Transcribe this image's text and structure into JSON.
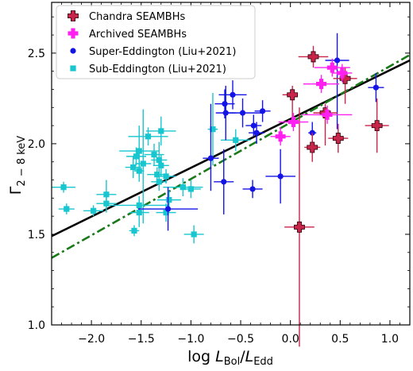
{
  "chart_data": {
    "type": "scatter",
    "xlabel_parts": {
      "prefix": "log ",
      "L1": "L",
      "sub1": "Bol",
      "slash": "/",
      "L2": "L",
      "sub2": "Edd"
    },
    "ylabel_parts": {
      "main": "Γ",
      "sub": "2 − 8 keV"
    },
    "xlim": [
      -2.4,
      1.2
    ],
    "ylim": [
      1.0,
      2.78
    ],
    "x_ticks": [
      -2.0,
      -1.5,
      -1.0,
      -0.5,
      0.0,
      0.5,
      1.0
    ],
    "x_tick_labels": [
      "−2.0",
      "−1.5",
      "−1.0",
      "−0.5",
      "0.0",
      "0.5",
      "1.0"
    ],
    "y_ticks": [
      1.0,
      1.5,
      2.0,
      2.5
    ],
    "y_tick_labels": [
      "1.0",
      "1.5",
      "2.0",
      "2.5"
    ],
    "legend_position": "top-left",
    "series": [
      {
        "name": "Chandra SEAMBHs",
        "marker": "plus",
        "color": "#c8254a",
        "points": [
          {
            "x": 0.23,
            "y": 2.48,
            "xerr": [
              0.15,
              0.15
            ],
            "yerr": [
              0.06,
              0.06
            ]
          },
          {
            "x": 0.55,
            "y": 2.36,
            "xerr": [
              0.12,
              0.12
            ],
            "yerr": [
              0.14,
              0.06
            ]
          },
          {
            "x": 0.02,
            "y": 2.27,
            "xerr": [
              0.1,
              0.05
            ],
            "yerr": [
              0.15,
              0.05
            ]
          },
          {
            "x": 0.35,
            "y": 2.17,
            "xerr": [
              0.12,
              0.12
            ],
            "yerr": [
              0.18,
              0.05
            ]
          },
          {
            "x": 0.87,
            "y": 2.1,
            "xerr": [
              0.12,
              0.12
            ],
            "yerr": [
              0.15,
              0.15
            ]
          },
          {
            "x": 0.48,
            "y": 2.03,
            "xerr": [
              0.1,
              0.1
            ],
            "yerr": [
              0.08,
              0.08
            ]
          },
          {
            "x": 0.22,
            "y": 1.98,
            "xerr": [
              0.08,
              0.08
            ],
            "yerr": [
              0.08,
              0.08
            ]
          },
          {
            "x": 0.09,
            "y": 1.54,
            "xerr": [
              0.15,
              0.15
            ],
            "yerr": [
              0.66,
              0.66
            ]
          }
        ]
      },
      {
        "name": "Archived SEAMBHs",
        "marker": "plus",
        "color": "#ff1ff0",
        "points": [
          {
            "x": 0.42,
            "y": 2.42,
            "xerr": [
              0.18,
              0.18
            ],
            "yerr": [
              0.05,
              0.05
            ]
          },
          {
            "x": 0.52,
            "y": 2.39,
            "xerr": [
              0.1,
              0.1
            ],
            "yerr": [
              0.05,
              0.05
            ]
          },
          {
            "x": 0.31,
            "y": 2.33,
            "xerr": [
              0.18,
              0.18
            ],
            "yerr": [
              0.05,
              0.05
            ]
          },
          {
            "x": 0.37,
            "y": 2.16,
            "xerr": [
              0.25,
              0.25
            ],
            "yerr": [
              0.05,
              0.05
            ]
          },
          {
            "x": 0.03,
            "y": 2.12,
            "xerr": [
              0.15,
              0.15
            ],
            "yerr": [
              0.05,
              0.05
            ]
          },
          {
            "x": -0.1,
            "y": 2.04,
            "xerr": [
              0.1,
              0.1
            ],
            "yerr": [
              0.05,
              0.05
            ]
          }
        ]
      },
      {
        "name": "Super-Eddington (Liu+2021)",
        "marker": "circle",
        "color": "#1414e6",
        "points": [
          {
            "x": 0.47,
            "y": 2.46,
            "xerr": [
              0.12,
              0.12
            ],
            "yerr": [
              0.38,
              0.15
            ]
          },
          {
            "x": 0.86,
            "y": 2.31,
            "xerr": [
              0.08,
              0.08
            ],
            "yerr": [
              0.08,
              0.08
            ]
          },
          {
            "x": -0.58,
            "y": 2.27,
            "xerr": [
              0.14,
              0.14
            ],
            "yerr": [
              0.08,
              0.08
            ]
          },
          {
            "x": -0.66,
            "y": 2.22,
            "xerr": [
              0.1,
              0.1
            ],
            "yerr": [
              0.08,
              0.08
            ]
          },
          {
            "x": -0.65,
            "y": 2.17,
            "xerr": [
              0.1,
              0.1
            ],
            "yerr": [
              0.15,
              0.15
            ]
          },
          {
            "x": -0.48,
            "y": 2.17,
            "xerr": [
              0.2,
              0.2
            ],
            "yerr": [
              0.08,
              0.08
            ]
          },
          {
            "x": -0.28,
            "y": 2.18,
            "xerr": [
              0.08,
              0.08
            ],
            "yerr": [
              0.06,
              0.06
            ]
          },
          {
            "x": -0.37,
            "y": 2.1,
            "xerr": [
              0.08,
              0.08
            ],
            "yerr": [
              0.06,
              0.06
            ]
          },
          {
            "x": -0.34,
            "y": 2.06,
            "xerr": [
              0.08,
              0.08
            ],
            "yerr": [
              0.06,
              0.06
            ]
          },
          {
            "x": 0.22,
            "y": 2.06,
            "xerr": [
              0.04,
              0.04
            ],
            "yerr": [
              0.1,
              0.06
            ]
          },
          {
            "x": -0.8,
            "y": 1.92,
            "xerr": [
              0.08,
              0.08
            ],
            "yerr": [
              0.18,
              0.3
            ]
          },
          {
            "x": -0.67,
            "y": 1.79,
            "xerr": [
              0.1,
              0.1
            ],
            "yerr": [
              0.18,
              0.18
            ]
          },
          {
            "x": -0.1,
            "y": 1.82,
            "xerr": [
              0.15,
              0.15
            ],
            "yerr": [
              0.15,
              0.15
            ]
          },
          {
            "x": -0.38,
            "y": 1.75,
            "xerr": [
              0.1,
              0.1
            ],
            "yerr": [
              0.05,
              0.05
            ]
          },
          {
            "x": -1.23,
            "y": 1.64,
            "xerr": [
              0.3,
              0.3
            ],
            "yerr": [
              0.12,
              0.12
            ]
          }
        ]
      },
      {
        "name": "Sub-Eddington (Liu+2021)",
        "marker": "square",
        "color": "#17c6cf",
        "points": [
          {
            "x": -0.78,
            "y": 2.08,
            "xerr": [
              0.05,
              0.05
            ],
            "yerr": [
              0.2,
              0.2
            ]
          },
          {
            "x": -1.3,
            "y": 2.07,
            "xerr": [
              0.15,
              0.15
            ],
            "yerr": [
              0.08,
              0.08
            ]
          },
          {
            "x": -1.43,
            "y": 2.04,
            "xerr": [
              0.2,
              0.2
            ],
            "yerr": [
              0.05,
              0.05
            ]
          },
          {
            "x": -0.55,
            "y": 2.02,
            "xerr": [
              0.15,
              0.15
            ],
            "yerr": [
              0.06,
              0.06
            ]
          },
          {
            "x": -1.52,
            "y": 1.96,
            "xerr": [
              0.2,
              0.2
            ],
            "yerr": [
              0.14,
              0.14
            ]
          },
          {
            "x": -1.55,
            "y": 1.93,
            "xerr": [
              0.1,
              0.1
            ],
            "yerr": [
              0.05,
              0.05
            ]
          },
          {
            "x": -1.37,
            "y": 1.94,
            "xerr": [
              0.1,
              0.1
            ],
            "yerr": [
              0.06,
              0.06
            ]
          },
          {
            "x": -1.32,
            "y": 1.91,
            "xerr": [
              0.08,
              0.08
            ],
            "yerr": [
              0.1,
              0.1
            ]
          },
          {
            "x": -1.48,
            "y": 1.89,
            "xerr": [
              0.08,
              0.08
            ],
            "yerr": [
              0.33,
              0.3
            ]
          },
          {
            "x": -1.3,
            "y": 1.88,
            "xerr": [
              0.08,
              0.08
            ],
            "yerr": [
              0.06,
              0.06
            ]
          },
          {
            "x": -1.58,
            "y": 1.87,
            "xerr": [
              0.08,
              0.08
            ],
            "yerr": [
              0.06,
              0.06
            ]
          },
          {
            "x": -1.52,
            "y": 1.85,
            "xerr": [
              0.05,
              0.05
            ],
            "yerr": [
              0.06,
              0.06
            ]
          },
          {
            "x": -1.34,
            "y": 1.83,
            "xerr": [
              0.1,
              0.1
            ],
            "yerr": [
              0.04,
              0.04
            ]
          },
          {
            "x": -1.25,
            "y": 1.82,
            "xerr": [
              0.1,
              0.1
            ],
            "yerr": [
              0.04,
              0.04
            ]
          },
          {
            "x": -1.32,
            "y": 1.79,
            "xerr": [
              0.08,
              0.08
            ],
            "yerr": [
              0.05,
              0.05
            ]
          },
          {
            "x": -1.08,
            "y": 1.76,
            "xerr": [
              0.2,
              0.2
            ],
            "yerr": [
              0.05,
              0.05
            ]
          },
          {
            "x": -1.0,
            "y": 1.75,
            "xerr": [
              0.1,
              0.1
            ],
            "yerr": [
              0.05,
              0.05
            ]
          },
          {
            "x": -2.28,
            "y": 1.76,
            "xerr": [
              0.12,
              0.12
            ],
            "yerr": [
              0.03,
              0.03
            ]
          },
          {
            "x": -1.85,
            "y": 1.72,
            "xerr": [
              0.1,
              0.1
            ],
            "yerr": [
              0.08,
              0.08
            ]
          },
          {
            "x": -1.22,
            "y": 1.69,
            "xerr": [
              0.12,
              0.12
            ],
            "yerr": [
              0.05,
              0.05
            ]
          },
          {
            "x": -1.85,
            "y": 1.67,
            "xerr": [
              0.1,
              0.1
            ],
            "yerr": [
              0.05,
              0.05
            ]
          },
          {
            "x": -1.52,
            "y": 1.66,
            "xerr": [
              0.3,
              0.3
            ],
            "yerr": [
              0.05,
              0.05
            ]
          },
          {
            "x": -2.25,
            "y": 1.64,
            "xerr": [
              0.08,
              0.08
            ],
            "yerr": [
              0.03,
              0.03
            ]
          },
          {
            "x": -1.98,
            "y": 1.63,
            "xerr": [
              0.1,
              0.1
            ],
            "yerr": [
              0.03,
              0.03
            ]
          },
          {
            "x": -1.52,
            "y": 1.62,
            "xerr": [
              0.1,
              0.1
            ],
            "yerr": [
              0.08,
              0.08
            ]
          },
          {
            "x": -1.25,
            "y": 1.62,
            "xerr": [
              0.1,
              0.1
            ],
            "yerr": [
              0.05,
              0.05
            ]
          },
          {
            "x": -1.57,
            "y": 1.52,
            "xerr": [
              0.05,
              0.05
            ],
            "yerr": [
              0.03,
              0.03
            ]
          },
          {
            "x": -0.97,
            "y": 1.5,
            "xerr": [
              0.1,
              0.1
            ],
            "yerr": [
              0.05,
              0.05
            ]
          }
        ]
      }
    ],
    "fit_lines": [
      {
        "style": "solid",
        "color": "#000000",
        "x": [
          -2.4,
          1.2
        ],
        "y": [
          1.49,
          2.46
        ]
      },
      {
        "style": "dashdot",
        "color": "#1a7a1a",
        "x": [
          -2.4,
          1.2
        ],
        "y": [
          1.37,
          2.49
        ]
      }
    ]
  }
}
